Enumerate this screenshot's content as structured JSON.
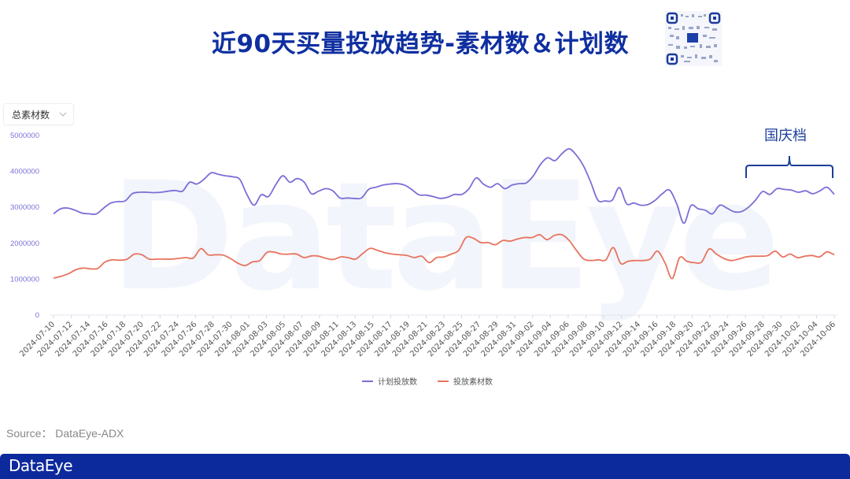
{
  "header": {
    "title": "近90天买量投放趋势-素材数＆计划数",
    "qr_code_icon": "qr-code-icon"
  },
  "filter": {
    "selected": "总素材数",
    "chevron_icon": "chevron-down-icon"
  },
  "annotation": {
    "label": "国庆档",
    "bracket_icon": "brace-bracket-icon"
  },
  "source": {
    "label": "Source： DataEye-ADX"
  },
  "footer": {
    "logo": "DataEye"
  },
  "watermark": "DataEye",
  "colors": {
    "plan_series": "#7b6fd6",
    "material_series": "#e8735e",
    "title": "#0f2fa0",
    "footer": "#0d2a9c",
    "axis_label": "#7b73d6"
  },
  "chart_data": {
    "type": "line",
    "title": "近90天买量投放趋势-素材数＆计划数",
    "xlabel": "",
    "ylabel": "",
    "ylim": [
      0,
      5000000
    ],
    "yticks": [
      0,
      1000000,
      2000000,
      3000000,
      4000000,
      5000000
    ],
    "ytick_labels": [
      "0",
      "1000000",
      "2000000",
      "3000000",
      "4000000",
      "5000000"
    ],
    "xtick_labels": [
      "2024-07-10",
      "2024-07-12",
      "2024-07-14",
      "2024-07-16",
      "2024-07-18",
      "2024-07-20",
      "2024-07-22",
      "2024-07-24",
      "2024-07-26",
      "2024-07-28",
      "2024-07-30",
      "2024-08-01",
      "2024-08-03",
      "2024-08-05",
      "2024-08-07",
      "2024-08-09",
      "2024-08-11",
      "2024-08-13",
      "2024-08-15",
      "2024-08-17",
      "2024-08-19",
      "2024-08-21",
      "2024-08-23",
      "2024-08-25",
      "2024-08-27",
      "2024-08-29",
      "2024-08-31",
      "2024-09-02",
      "2024-09-04",
      "2024-09-06",
      "2024-09-08",
      "2024-09-10",
      "2024-09-12",
      "2024-09-14",
      "2024-09-16",
      "2024-09-18",
      "2024-09-20",
      "2024-09-22",
      "2024-09-24",
      "2024-09-26",
      "2024-09-28",
      "2024-09-30",
      "2024-10-02",
      "2024-10-04",
      "2024-10-06"
    ],
    "x_start": "2024-07-10",
    "x_end": "2024-10-06",
    "grid": false,
    "legend_position": "bottom",
    "legend": [
      "计划投放数",
      "投放素材数"
    ],
    "annotations": [
      {
        "text": "国庆档",
        "range": [
          "2024-09-26",
          "2024-10-06"
        ]
      }
    ],
    "series": [
      {
        "name": "计划投放数",
        "color": "#7b6fd6",
        "values": [
          2820000,
          2960000,
          2980000,
          2920000,
          2840000,
          2820000,
          2820000,
          2980000,
          3120000,
          3160000,
          3180000,
          3380000,
          3420000,
          3420000,
          3410000,
          3420000,
          3450000,
          3470000,
          3450000,
          3700000,
          3650000,
          3780000,
          3960000,
          3920000,
          3880000,
          3850000,
          3780000,
          3360000,
          3060000,
          3350000,
          3300000,
          3620000,
          3880000,
          3700000,
          3800000,
          3700000,
          3380000,
          3450000,
          3520000,
          3460000,
          3260000,
          3260000,
          3250000,
          3260000,
          3500000,
          3560000,
          3620000,
          3650000,
          3660000,
          3620000,
          3500000,
          3350000,
          3340000,
          3300000,
          3250000,
          3280000,
          3360000,
          3360000,
          3520000,
          3820000,
          3650000,
          3560000,
          3660000,
          3520000,
          3620000,
          3660000,
          3680000,
          3880000,
          4200000,
          4380000,
          4300000,
          4500000,
          4630000,
          4450000,
          4150000,
          3700000,
          3200000,
          3180000,
          3200000,
          3550000,
          3100000,
          3120000,
          3060000,
          3080000,
          3200000,
          3380000,
          3480000,
          3100000,
          2560000,
          3050000,
          2960000,
          2920000,
          2820000,
          3060000,
          2980000,
          2880000,
          2880000,
          3000000,
          3200000,
          3440000,
          3360000,
          3520000,
          3500000,
          3480000,
          3420000,
          3460000,
          3380000,
          3460000,
          3560000,
          3360000
        ],
        "note": "approximate values traced from line; sampled ~daily but smoothed"
      },
      {
        "name": "投放素材数",
        "color": "#e8735e",
        "values": [
          1030000,
          1080000,
          1150000,
          1260000,
          1310000,
          1290000,
          1300000,
          1480000,
          1540000,
          1530000,
          1560000,
          1700000,
          1680000,
          1560000,
          1560000,
          1560000,
          1560000,
          1580000,
          1600000,
          1590000,
          1850000,
          1680000,
          1680000,
          1670000,
          1580000,
          1450000,
          1380000,
          1480000,
          1520000,
          1750000,
          1750000,
          1700000,
          1700000,
          1700000,
          1600000,
          1650000,
          1640000,
          1580000,
          1550000,
          1620000,
          1600000,
          1560000,
          1720000,
          1860000,
          1800000,
          1740000,
          1700000,
          1680000,
          1660000,
          1600000,
          1640000,
          1460000,
          1600000,
          1620000,
          1700000,
          1800000,
          2160000,
          2140000,
          2020000,
          2020000,
          1960000,
          2080000,
          2060000,
          2120000,
          2160000,
          2160000,
          2240000,
          2100000,
          2220000,
          2240000,
          2080000,
          1800000,
          1560000,
          1520000,
          1540000,
          1540000,
          1880000,
          1440000,
          1500000,
          1520000,
          1520000,
          1560000,
          1780000,
          1460000,
          1020000,
          1600000,
          1500000,
          1460000,
          1480000,
          1840000,
          1700000,
          1580000,
          1520000,
          1560000,
          1620000,
          1640000,
          1640000,
          1660000,
          1780000,
          1620000,
          1700000,
          1600000,
          1640000,
          1660000,
          1620000,
          1760000,
          1680000
        ]
      }
    ]
  }
}
